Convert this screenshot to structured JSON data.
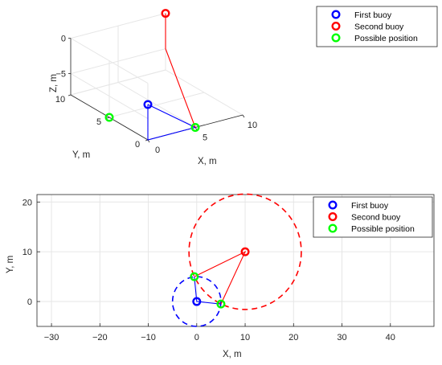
{
  "chart_data": [
    {
      "type": "line",
      "projection": "3d",
      "xlabel": "X, m",
      "ylabel": "Y, m",
      "zlabel": "Z, m",
      "xlim": [
        0,
        10
      ],
      "ylim": [
        0,
        10
      ],
      "zlim": [
        -8,
        0
      ],
      "xticks": [
        "0",
        "5",
        "10"
      ],
      "yticks": [
        "0",
        "5",
        "10"
      ],
      "zticks": [
        "-5",
        "0"
      ],
      "grid": true,
      "legend_position": "top-right",
      "legend": [
        "First buoy",
        "Second buoy",
        "Possible position"
      ],
      "points": {
        "first_buoy": {
          "x": 0,
          "y": 0,
          "z": -3
        },
        "second_buoy": {
          "x": 10,
          "y": 10,
          "z": 0
        },
        "possible_positions": [
          {
            "x": 5,
            "y": 0,
            "z": -8
          },
          {
            "x": 0,
            "y": 5,
            "z": -8
          }
        ]
      },
      "series": [
        {
          "name": "First buoy",
          "color": "#0000ff",
          "x": [
            0,
            0,
            0,
            5,
            0
          ],
          "y": [
            0,
            0,
            0,
            0,
            0
          ],
          "z": [
            -3,
            -8,
            -8,
            -8,
            -3
          ]
        },
        {
          "name": "Second buoy",
          "color": "#ff0000",
          "x": [
            10,
            10,
            5
          ],
          "y": [
            10,
            10,
            0
          ],
          "z": [
            0,
            -5,
            -8
          ]
        }
      ]
    },
    {
      "type": "line",
      "xlabel": "X, m",
      "ylabel": "Y, m",
      "xlim": [
        -33,
        49
      ],
      "ylim": [
        -5,
        21.5
      ],
      "xticks": [
        -30,
        -20,
        -10,
        0,
        10,
        20,
        30,
        40
      ],
      "yticks": [
        0,
        10,
        20
      ],
      "grid": true,
      "legend_position": "top-right",
      "legend": [
        "First buoy",
        "Second buoy",
        "Possible position"
      ],
      "points": {
        "first_buoy": {
          "x": 0,
          "y": 0
        },
        "second_buoy": {
          "x": 10,
          "y": 10
        },
        "possible_positions": [
          {
            "x": 5,
            "y": -0.5
          },
          {
            "x": -0.5,
            "y": 5
          }
        ]
      },
      "circles": [
        {
          "name": "First buoy",
          "center": [
            0,
            0
          ],
          "radius": 5,
          "color": "#0000ff",
          "style": "dashed"
        },
        {
          "name": "Second buoy",
          "center": [
            10,
            10
          ],
          "radius": 11.6,
          "color": "#ff0000",
          "style": "dashed"
        }
      ],
      "series": [
        {
          "name": "First buoy",
          "color": "#0000ff",
          "x": [
            -0.5,
            0,
            5
          ],
          "y": [
            5,
            0,
            -0.5
          ]
        },
        {
          "name": "Second buoy",
          "color": "#ff0000",
          "x": [
            -0.5,
            10,
            5
          ],
          "y": [
            5,
            10,
            -0.5
          ]
        }
      ]
    }
  ],
  "colors": {
    "first": "#0000ff",
    "second": "#ff0000",
    "possible": "#00ff00",
    "grid": "#e6e6e6",
    "axis": "#262626"
  }
}
